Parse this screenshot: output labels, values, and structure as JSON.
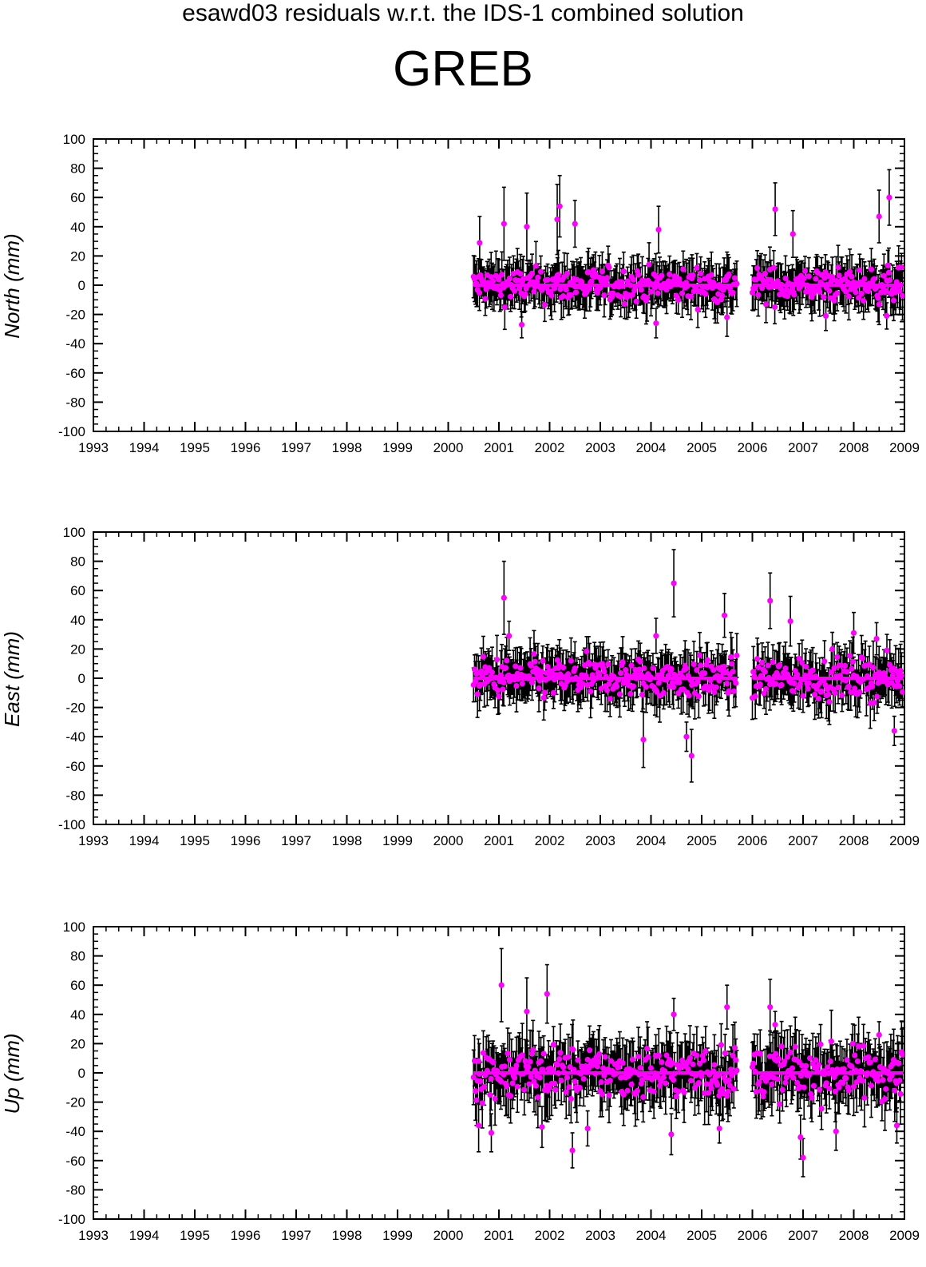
{
  "page": {
    "title": "esawd03 residuals w.r.t. the IDS-1 combined solution",
    "station": "GREB"
  },
  "colors": {
    "points": "#ff00ff",
    "errorbars": "#000000",
    "axes": "#000000"
  },
  "chart_data": [
    {
      "type": "scatter",
      "ylabel": "North (mm)",
      "xlim": [
        1993,
        2009
      ],
      "ylim": [
        -100,
        100
      ],
      "xticks": [
        "1993",
        "1994",
        "1995",
        "1996",
        "1997",
        "1998",
        "1999",
        "2000",
        "2001",
        "2002",
        "2003",
        "2004",
        "2005",
        "2006",
        "2007",
        "2008",
        "2009"
      ],
      "yticks": [
        "100",
        "80",
        "60",
        "40",
        "20",
        "0",
        "-20",
        "-40",
        "-60",
        "-80",
        "-100"
      ],
      "segments": [
        [
          2000.5,
          2005.7
        ],
        [
          2006.0,
          2008.98
        ]
      ],
      "spread": 11,
      "mean_sigma": 13,
      "outliers": [
        {
          "x": 2000.62,
          "y": 29,
          "err": 18
        },
        {
          "x": 2001.1,
          "y": 42,
          "err": 25
        },
        {
          "x": 2001.55,
          "y": 40,
          "err": 23
        },
        {
          "x": 2002.15,
          "y": 45,
          "err": 24
        },
        {
          "x": 2002.2,
          "y": 54,
          "err": 21
        },
        {
          "x": 2002.5,
          "y": 42,
          "err": 16
        },
        {
          "x": 2004.15,
          "y": 38,
          "err": 16
        },
        {
          "x": 2004.1,
          "y": -26,
          "err": 10
        },
        {
          "x": 2001.45,
          "y": -27,
          "err": 9
        },
        {
          "x": 2005.5,
          "y": -22,
          "err": 13
        },
        {
          "x": 2006.45,
          "y": 52,
          "err": 18
        },
        {
          "x": 2006.8,
          "y": 35,
          "err": 16
        },
        {
          "x": 2008.5,
          "y": 47,
          "err": 18
        },
        {
          "x": 2008.7,
          "y": 60,
          "err": 19
        },
        {
          "x": 2008.65,
          "y": -21,
          "err": 9
        },
        {
          "x": 2007.45,
          "y": -21,
          "err": 10
        }
      ]
    },
    {
      "type": "scatter",
      "ylabel": "East (mm)",
      "xlim": [
        1993,
        2009
      ],
      "ylim": [
        -100,
        100
      ],
      "xticks": [
        "1993",
        "1994",
        "1995",
        "1996",
        "1997",
        "1998",
        "1999",
        "2000",
        "2001",
        "2002",
        "2003",
        "2004",
        "2005",
        "2006",
        "2007",
        "2008",
        "2009"
      ],
      "yticks": [
        "100",
        "80",
        "60",
        "40",
        "20",
        "0",
        "-20",
        "-40",
        "-60",
        "-80",
        "-100"
      ],
      "segments": [
        [
          2000.5,
          2005.7
        ],
        [
          2006.0,
          2008.98
        ]
      ],
      "spread": 13,
      "mean_sigma": 14,
      "outliers": [
        {
          "x": 2001.1,
          "y": 55,
          "err": 25
        },
        {
          "x": 2004.45,
          "y": 65,
          "err": 23
        },
        {
          "x": 2005.45,
          "y": 43,
          "err": 15
        },
        {
          "x": 2003.85,
          "y": -42,
          "err": 19
        },
        {
          "x": 2004.8,
          "y": -53,
          "err": 18
        },
        {
          "x": 2004.1,
          "y": 29,
          "err": 12
        },
        {
          "x": 2004.7,
          "y": -40,
          "err": 10
        },
        {
          "x": 2001.2,
          "y": 29,
          "err": 10
        },
        {
          "x": 2006.35,
          "y": 53,
          "err": 19
        },
        {
          "x": 2006.75,
          "y": 39,
          "err": 17
        },
        {
          "x": 2008.0,
          "y": 31,
          "err": 14
        },
        {
          "x": 2008.8,
          "y": -36,
          "err": 10
        },
        {
          "x": 2008.45,
          "y": 27,
          "err": 11
        }
      ]
    },
    {
      "type": "scatter",
      "ylabel": "Up (mm)",
      "xlim": [
        1993,
        2009
      ],
      "ylim": [
        -100,
        100
      ],
      "xticks": [
        "1993",
        "1994",
        "1995",
        "1996",
        "1997",
        "1998",
        "1999",
        "2000",
        "2001",
        "2002",
        "2003",
        "2004",
        "2005",
        "2006",
        "2007",
        "2008",
        "2009"
      ],
      "yticks": [
        "100",
        "80",
        "60",
        "40",
        "20",
        "0",
        "-20",
        "-40",
        "-60",
        "-80",
        "-100"
      ],
      "segments": [
        [
          2000.5,
          2005.7
        ],
        [
          2006.0,
          2008.98
        ]
      ],
      "spread": 17,
      "mean_sigma": 17,
      "outliers": [
        {
          "x": 2001.05,
          "y": 60,
          "err": 25
        },
        {
          "x": 2001.55,
          "y": 42,
          "err": 23
        },
        {
          "x": 2001.95,
          "y": 54,
          "err": 20
        },
        {
          "x": 2002.45,
          "y": -53,
          "err": 12
        },
        {
          "x": 2002.75,
          "y": -38,
          "err": 12
        },
        {
          "x": 2000.6,
          "y": -36,
          "err": 18
        },
        {
          "x": 2000.85,
          "y": -41,
          "err": 13
        },
        {
          "x": 2001.85,
          "y": -37,
          "err": 14
        },
        {
          "x": 2004.45,
          "y": 40,
          "err": 11
        },
        {
          "x": 2005.5,
          "y": 45,
          "err": 15
        },
        {
          "x": 2004.4,
          "y": -42,
          "err": 14
        },
        {
          "x": 2005.35,
          "y": -38,
          "err": 10
        },
        {
          "x": 2006.35,
          "y": 45,
          "err": 19
        },
        {
          "x": 2006.45,
          "y": 33,
          "err": 9
        },
        {
          "x": 2006.95,
          "y": -44,
          "err": 15
        },
        {
          "x": 2007.0,
          "y": -58,
          "err": 13
        },
        {
          "x": 2007.65,
          "y": -40,
          "err": 13
        },
        {
          "x": 2008.85,
          "y": -36,
          "err": 12
        },
        {
          "x": 2008.5,
          "y": 26,
          "err": 9
        }
      ]
    }
  ]
}
